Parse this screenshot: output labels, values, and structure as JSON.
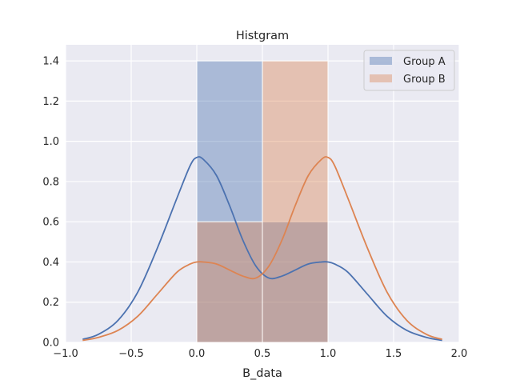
{
  "chart_data": {
    "type": "bar",
    "title": "Histgram",
    "xlabel": "B_data",
    "ylabel": "",
    "xlim": [
      -1.0,
      2.0
    ],
    "ylim": [
      0.0,
      1.48
    ],
    "x_ticks": [
      "−1.0",
      "−0.5",
      "0.0",
      "0.5",
      "1.0",
      "1.5",
      "2.0"
    ],
    "x_tick_values": [
      -1.0,
      -0.5,
      0.0,
      0.5,
      1.0,
      1.5,
      2.0
    ],
    "y_ticks": [
      "0.0",
      "0.2",
      "0.4",
      "0.6",
      "0.8",
      "1.0",
      "1.2",
      "1.4"
    ],
    "y_tick_values": [
      0.0,
      0.2,
      0.4,
      0.6,
      0.8,
      1.0,
      1.2,
      1.4
    ],
    "grid": true,
    "legend_position": "top-right",
    "series": [
      {
        "name": "Group A",
        "color": "#4c72b0",
        "histogram": {
          "bin_edges": [
            0.0,
            0.5,
            1.0
          ],
          "densities": [
            1.4,
            0.6
          ]
        },
        "kde": {
          "x": [
            -0.87,
            -0.75,
            -0.6,
            -0.45,
            -0.3,
            -0.15,
            -0.05,
            0.0,
            0.05,
            0.15,
            0.25,
            0.35,
            0.45,
            0.55,
            0.65,
            0.75,
            0.85,
            0.95,
            1.0,
            1.05,
            1.15,
            1.3,
            1.45,
            1.6,
            1.75,
            1.87
          ],
          "y": [
            0.015,
            0.04,
            0.11,
            0.25,
            0.47,
            0.72,
            0.88,
            0.92,
            0.91,
            0.83,
            0.68,
            0.51,
            0.38,
            0.32,
            0.33,
            0.36,
            0.39,
            0.4,
            0.4,
            0.39,
            0.35,
            0.24,
            0.13,
            0.06,
            0.025,
            0.01
          ]
        }
      },
      {
        "name": "Group B",
        "color": "#dd8452",
        "histogram": {
          "bin_edges": [
            0.0,
            0.5,
            1.0
          ],
          "densities": [
            0.6,
            1.4
          ]
        },
        "kde": {
          "x": [
            -0.87,
            -0.75,
            -0.6,
            -0.45,
            -0.3,
            -0.15,
            -0.05,
            0.0,
            0.05,
            0.15,
            0.25,
            0.35,
            0.45,
            0.55,
            0.65,
            0.75,
            0.85,
            0.95,
            1.0,
            1.05,
            1.15,
            1.3,
            1.45,
            1.6,
            1.75,
            1.87
          ],
          "y": [
            0.01,
            0.025,
            0.06,
            0.13,
            0.24,
            0.35,
            0.39,
            0.4,
            0.4,
            0.39,
            0.36,
            0.33,
            0.32,
            0.38,
            0.51,
            0.68,
            0.83,
            0.91,
            0.92,
            0.88,
            0.72,
            0.47,
            0.25,
            0.11,
            0.04,
            0.015
          ]
        }
      }
    ]
  }
}
